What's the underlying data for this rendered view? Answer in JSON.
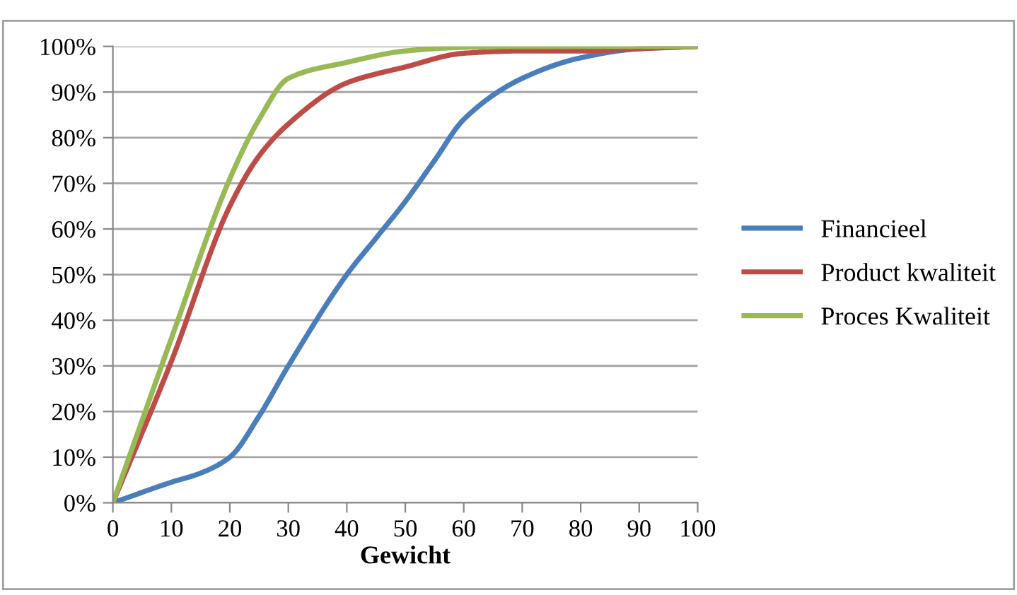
{
  "chart_data": {
    "type": "line",
    "xlabel": "Gewicht",
    "series": [
      {
        "name": "Financieel",
        "color": "#4a7ebb",
        "x": [
          0,
          10,
          15,
          20,
          25,
          30,
          40,
          45,
          50,
          55,
          60,
          70,
          80,
          90,
          100
        ],
        "values": [
          0,
          4.5,
          6.5,
          10,
          19,
          30,
          50,
          58,
          66,
          75,
          84,
          93,
          97.5,
          99.5,
          100
        ]
      },
      {
        "name": "Product kwaliteit",
        "color": "#be4b48",
        "x": [
          0,
          10,
          20,
          25,
          30,
          40,
          50,
          60,
          70,
          80,
          90,
          100
        ],
        "values": [
          0,
          31,
          65,
          76,
          83,
          92,
          95.5,
          98.5,
          99,
          99,
          99.5,
          100
        ]
      },
      {
        "name": "Proces Kwaliteit",
        "color": "#98b954",
        "x": [
          0,
          10,
          20,
          25,
          30,
          40,
          50,
          60,
          70,
          80,
          90,
          100
        ],
        "values": [
          0,
          36,
          71,
          84,
          93,
          96.5,
          99,
          99.8,
          100,
          100,
          100,
          100
        ]
      }
    ],
    "xlim": [
      0,
      100
    ],
    "xticks": [
      0,
      10,
      20,
      30,
      40,
      50,
      60,
      70,
      80,
      90,
      100
    ],
    "ylim": [
      0,
      100
    ],
    "yticks": [
      {
        "value": 0,
        "label": "0%"
      },
      {
        "value": 10,
        "label": "10%"
      },
      {
        "value": 20,
        "label": "20%"
      },
      {
        "value": 30,
        "label": "30%"
      },
      {
        "value": 40,
        "label": "40%"
      },
      {
        "value": 50,
        "label": "50%"
      },
      {
        "value": 60,
        "label": "60%"
      },
      {
        "value": 70,
        "label": "70%"
      },
      {
        "value": 80,
        "label": "80%"
      },
      {
        "value": 90,
        "label": "90%"
      },
      {
        "value": 100,
        "label": "100%"
      }
    ],
    "grid": "y",
    "legend": "right",
    "marker": "none",
    "line_style": "solid"
  }
}
